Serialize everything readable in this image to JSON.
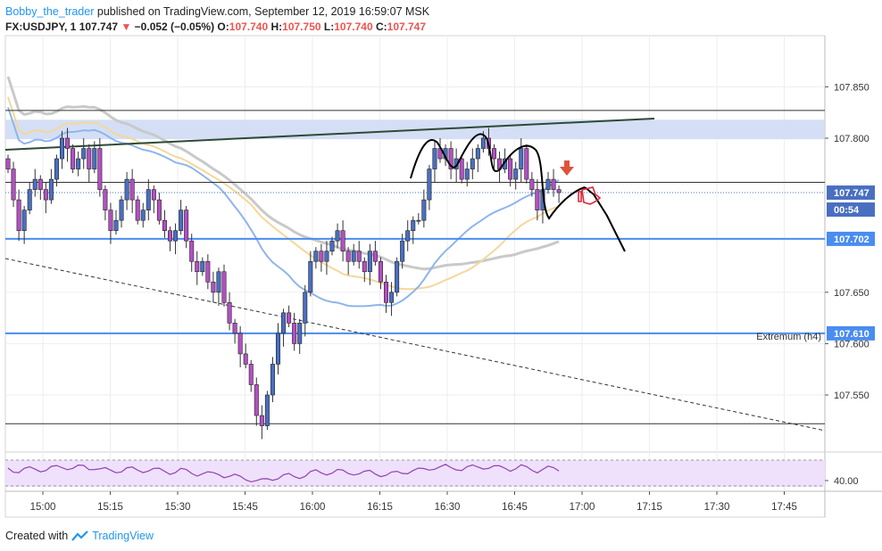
{
  "header": {
    "author": "Bobby_the_trader",
    "publish_text": " published on TradingView.com, September 12, 2019 16:59:07 MSK"
  },
  "ohlc": {
    "symbol": "FX:USDJPY, 1",
    "last": "107.747",
    "change": "−0.052 (−0.05%)",
    "o_label": "O:",
    "o": "107.740",
    "h_label": "H:",
    "h": "107.750",
    "l_label": "L:",
    "l": "107.740",
    "c_label": "C:",
    "c": "107.747"
  },
  "price_labels": {
    "last_price": "107.747",
    "countdown": "00:54",
    "level_1": "107.702",
    "level_2": "107.610"
  },
  "annotation": "Extremum (h4)",
  "footer": {
    "created_with": "Created with",
    "brand": "TradingView"
  },
  "colors": {
    "up_candle": "#4a6fc1",
    "down_candle": "#b44fc4",
    "level_line": "#4a8cf0",
    "resistance_zone": "#cfdcf5",
    "trendline": "#2e4a36",
    "ma_gray": "#c9c9c9",
    "ma_yellow": "#f5d79a",
    "ma_blue": "#8fb5ea",
    "rsi_line": "#8e44ad",
    "rsi_band": "#efe0fb",
    "arrow": "#e0523a"
  },
  "chart_data": {
    "type": "candlestick",
    "symbol": "FX:USDJPY",
    "interval": "1",
    "y_ticks": [
      107.85,
      107.8,
      107.65,
      107.6,
      107.55
    ],
    "y_tick_labels": [
      "107.850",
      "107.800",
      "107.650",
      "107.600",
      "107.550"
    ],
    "ylim": [
      107.505,
      107.905
    ],
    "x_ticks": [
      "15:00",
      "15:15",
      "15:30",
      "15:45",
      "16:00",
      "16:15",
      "16:30",
      "16:45",
      "17:00",
      "17:15",
      "17:30",
      "17:45"
    ],
    "horizontal_levels": [
      107.827,
      107.757,
      107.702,
      107.61,
      107.522
    ],
    "resistance_zone": [
      107.799,
      107.818
    ],
    "last_price": 107.747,
    "closes": [
      107.77,
      107.74,
      107.71,
      107.73,
      107.75,
      107.76,
      107.75,
      107.74,
      107.76,
      107.78,
      107.8,
      107.79,
      107.77,
      107.78,
      107.79,
      107.77,
      107.79,
      107.75,
      107.73,
      107.71,
      107.72,
      107.74,
      107.76,
      107.74,
      107.72,
      107.73,
      107.75,
      107.74,
      107.72,
      107.71,
      107.7,
      107.71,
      107.73,
      107.7,
      107.68,
      107.67,
      107.68,
      107.66,
      107.65,
      107.67,
      107.64,
      107.62,
      107.61,
      107.59,
      107.58,
      107.56,
      107.53,
      107.52,
      107.55,
      107.58,
      107.61,
      107.63,
      107.62,
      107.6,
      107.62,
      107.65,
      107.68,
      107.69,
      107.68,
      107.69,
      107.7,
      107.71,
      107.69,
      107.68,
      107.69,
      107.68,
      107.67,
      107.69,
      107.68,
      107.66,
      107.64,
      107.65,
      107.68,
      107.7,
      107.71,
      107.72,
      107.72,
      107.74,
      107.77,
      107.79,
      107.78,
      107.79,
      107.77,
      107.78,
      107.76,
      107.77,
      107.78,
      107.79,
      107.8,
      107.79,
      107.78,
      107.77,
      107.78,
      107.76,
      107.77,
      107.79,
      107.76,
      107.75,
      107.73,
      107.75,
      107.76,
      107.75,
      107.747
    ],
    "rsi": {
      "level_labels": [
        "40.00"
      ]
    }
  }
}
